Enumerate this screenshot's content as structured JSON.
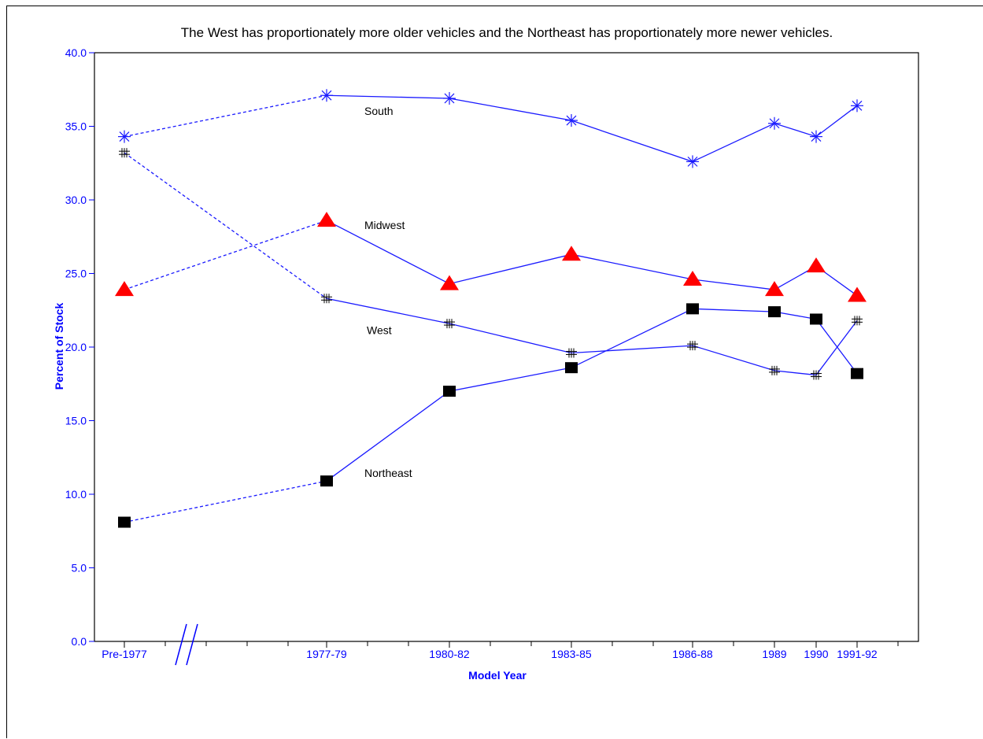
{
  "chart_data": {
    "type": "line",
    "title": "The West has proportionately more older vehicles and the Northeast has proportionately more newer vehicles.",
    "xlabel": "Model Year",
    "ylabel": "Percent of Stock",
    "categories": [
      "Pre-1977",
      "1977-79",
      "1980-82",
      "1983-85",
      "1986-88",
      "1989",
      "1990",
      "1991-92"
    ],
    "ylim": [
      0,
      40
    ],
    "yticks": [
      "0.0",
      "5.0",
      "10.0",
      "15.0",
      "20.0",
      "25.0",
      "30.0",
      "35.0",
      "40.0"
    ],
    "axis_break": true,
    "grid": false,
    "series": [
      {
        "name": "South",
        "values": [
          34.3,
          37.1,
          36.9,
          35.4,
          32.6,
          35.2,
          34.3,
          36.4
        ],
        "marker": "asterisk",
        "marker_color": "#1a1aff"
      },
      {
        "name": "Midwest",
        "values": [
          23.9,
          28.6,
          24.3,
          26.3,
          24.6,
          23.9,
          25.5,
          23.5
        ],
        "marker": "triangle",
        "marker_color": "#ff0000"
      },
      {
        "name": "West",
        "values": [
          33.2,
          23.3,
          21.6,
          19.6,
          20.1,
          18.4,
          18.1,
          21.8
        ],
        "marker": "hash",
        "marker_color": "#000000"
      },
      {
        "name": "Northeast",
        "values": [
          8.1,
          10.9,
          17.0,
          18.6,
          22.6,
          22.4,
          21.9,
          18.2
        ],
        "marker": "square",
        "marker_color": "#000000"
      }
    ],
    "colors": {
      "axis": "#0000ff",
      "line": "#1a1aff",
      "text": "#000000"
    }
  }
}
